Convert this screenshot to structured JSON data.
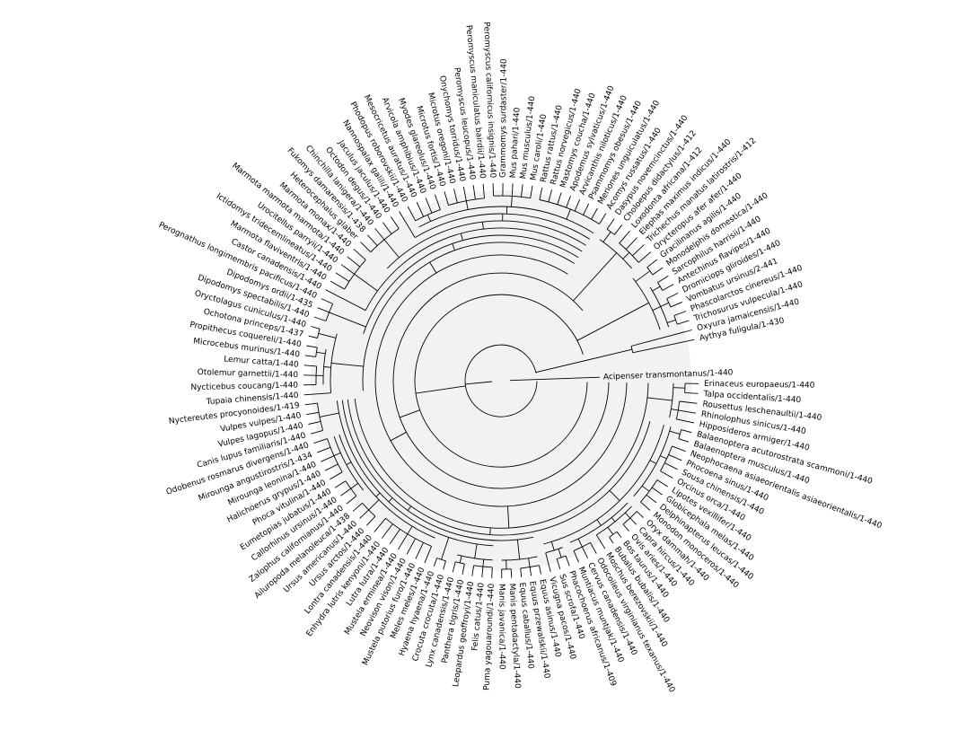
{
  "tree": {
    "background_color": "#f2f2f2",
    "branch_color": "#000000",
    "leaves": [
      "Acipenser transmontanus/1-440",
      "Erinaceus europaeus/1-440",
      "Talpa occidentalis/1-440",
      "Rousettus leschenaultii/1-440",
      "Rhinolophus sinicus/1-440",
      "Hipposideros armiger/1-440",
      "Balaenoptera acutorostrata scammoni/1-440",
      "Balaenoptera musculus/1-440",
      "Neophocaena asiaeorientalis asiaeorientalis/1-440",
      "Phocoena sinus/1-440",
      "Sousa chinensis/1-440",
      "Orcinus orca/1-440",
      "Lipotes vexillifer/1-440",
      "Globicephala melas/1-440",
      "Delphinapterus leucas/1-440",
      "Monodon monoceros/1-440",
      "Oryx dammah/1-440",
      "Capra hircus/1-440",
      "Ovis aries/1-440",
      "Bos taurus/1-440",
      "Bubalus bubalis/1-440",
      "Moschus berezovskii/1-440",
      "Odocoileus virginianus texanus/1-440",
      "Cervus canadensis/1-440",
      "Muntiacus muntjak/1-440",
      "Phacochoerus africanus/1-409",
      "Sus scrofa/1-440",
      "Vicugna pacos/1-440",
      "Equus asinus/1-440",
      "Equus przewalskii/1-440",
      "Equus caballus/1-440",
      "Manis pentadactyla/1-440",
      "Manis javanica/1-440",
      "Puma yagouaroundi/1-440",
      "Felis catus/1-440",
      "Leopardus geoffroyi/1-440",
      "Panthera tigris/1-440",
      "Lynx canadensis/1-440",
      "Crocuta crocuta/1-440",
      "Hyaena hyaena/1-440",
      "Meles meles/1-440",
      "Mustela putorius furo/1-440",
      "Neovison vison/1-440",
      "Mustela erminea/1-440",
      "Lutra lutra/1-440",
      "Enhydra lutris kenyoni/1-440",
      "Lontra canadensis/1-440",
      "Ursus arctos/1-440",
      "Ursus americanus/1-440",
      "Ailuropoda melanoleuca/1-438",
      "Zalophus californianus/1-440",
      "Callorhinus ursinus/1-440",
      "Eumetopias jubatus/1-440",
      "Phoca vitulina/1-440",
      "Halichoerus grypus/1-440",
      "Mirounga leonina/1-440",
      "Mirounga angustirostris/1-434",
      "Odobenus rosmarus divergens/1-440",
      "Canis lupus familiaris/1-440",
      "Vulpes lagopus/1-440",
      "Vulpes vulpes/1-440",
      "Nyctereutes procyonoides/1-419",
      "Tupaia chinensis/1-440",
      "Nycticebus coucang/1-440",
      "Otolemur garnettii/1-440",
      "Lemur catta/1-440",
      "Microcebus murinus/1-440",
      "Propithecus coquereli/1-440",
      "Ochotona princeps/1-437",
      "Oryctolagus cuniculus/1-440",
      "Dipodomys spectabilis/1-440",
      "Dipodomys ordii/1-435",
      "Perognathus longimembris pacificus/1-440",
      "Castor canadensis/1-440",
      "Marmota flaviventris/1-440",
      "Ictidomys tridecemlineatus/1-440",
      "Urocitellus parryii/1-440",
      "Marmota marmota marmota/1-440",
      "Marmota monax/1-440",
      "Heterocephalus glaber",
      "Fukomys damarensis/1-438",
      "Chinchilla lanigera/1-440",
      "Octodon degus/1-440",
      "Jaculus jaculus/1-440",
      "Nannospalax galili/1-440",
      "Phodopus roborovskii/1-440",
      "Mesocricetus auratus/1-440",
      "Arvicola amphibius/1-440",
      "Myodes glareolus/1-440",
      "Microtus fortis/1-440",
      "Microtus oregoni/1-440",
      "Onychomys torridus/1-440",
      "Peromyscus leucopus/1-440",
      "Peromyscus maniculatus bairdii/1-440",
      "Peromyscus californicus insignis/1-440",
      "Grammomys surdaster/1-440",
      "Mus pahari/1-440",
      "Mus musculus/1-440",
      "Mus caroli/1-440",
      "Rattus rattus/1-440",
      "Rattus norvegicus/1-440",
      "Mastomys coucha/1-440",
      "Apodemus sylvaticus/1-440",
      "Arvicanthis niloticus/1-440",
      "Psammomys obesus/1-440",
      "Meriones unguiculatus/1-440",
      "Acomys russatus/1-440",
      "Dasypus novemcinctus/1-440",
      "Choloepus didactylus/1-412",
      "Loxodonta africana/1-412",
      "Elephas maximus indicus/1-440",
      "Trichechus manatus latirostris/1-412",
      "Orycteropus afer afer/1-440",
      "Gracilinanus agilis/1-440",
      "Monodelphis domestica/1-440",
      "Sarcophilus harrisii/1-440",
      "Antechinus flavipes/1-440",
      "Dromiciops gliroides/1-440",
      "Vombatus ursinus/2-441",
      "Phascolarctos cinereus/1-440",
      "Trichosurus vulpecula/1-440",
      "Oxyura jamaicensis/1-440",
      "Aythya fuligula/1-430"
    ]
  }
}
